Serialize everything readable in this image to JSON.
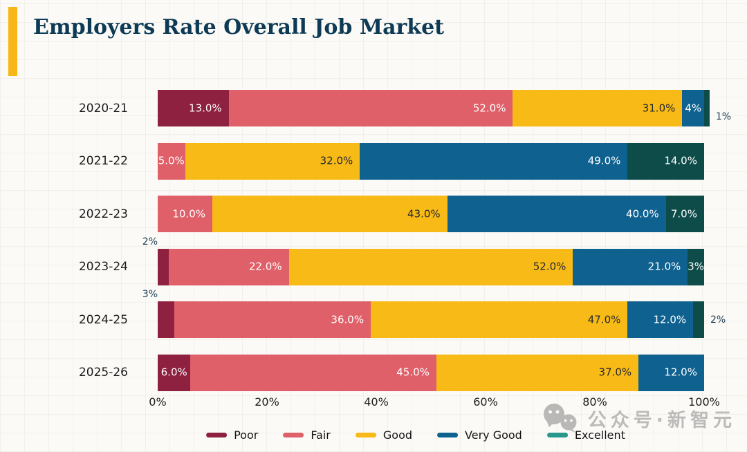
{
  "title": "Employers Rate Overall Job Market",
  "colors": {
    "accent": "#f7b718",
    "title": "#0d3a55",
    "poor": "#8e2040",
    "fair": "#e0606a",
    "good": "#f8ba16",
    "very_good": "#0f6190",
    "excellent": "#0e4c4a",
    "label_light": "#ffffff",
    "label_dark": "#24292e",
    "label_outside": "#1d3d52",
    "watermark": "#bcbbb9"
  },
  "chart_data": {
    "type": "bar",
    "orientation": "horizontal-stacked",
    "title": "Employers Rate Overall Job Market",
    "categories": [
      "2020-21",
      "2021-22",
      "2022-23",
      "2023-24",
      "2024-25",
      "2025-26"
    ],
    "series": [
      {
        "name": "Poor",
        "values": [
          13,
          0,
          0,
          2,
          3,
          6
        ]
      },
      {
        "name": "Fair",
        "values": [
          52,
          5,
          10,
          22,
          36,
          45
        ]
      },
      {
        "name": "Good",
        "values": [
          31,
          32,
          43,
          52,
          47,
          37
        ]
      },
      {
        "name": "Very Good",
        "values": [
          4,
          49,
          40,
          21,
          12,
          12
        ]
      },
      {
        "name": "Excellent",
        "values": [
          1,
          14,
          7,
          3,
          2,
          0
        ]
      }
    ],
    "x_ticks": [
      "0%",
      "20%",
      "40%",
      "60%",
      "80%",
      "100%"
    ],
    "xlim": [
      0,
      100
    ],
    "grid": false,
    "legend_position": "bottom",
    "rows": [
      {
        "category": "2020-21",
        "segments": [
          {
            "series": "Poor",
            "value": 13,
            "label": "13.0%",
            "placement": "in",
            "label_style": "light"
          },
          {
            "series": "Fair",
            "value": 52,
            "label": "52.0%",
            "placement": "in",
            "label_style": "light"
          },
          {
            "series": "Good",
            "value": 31,
            "label": "31.0%",
            "placement": "in",
            "label_style": "dark"
          },
          {
            "series": "Very Good",
            "value": 4,
            "label": "4%",
            "placement": "center",
            "label_style": "light"
          },
          {
            "series": "Excellent",
            "value": 1,
            "label": "1%",
            "placement": "out-right-low",
            "label_style": "outside"
          }
        ]
      },
      {
        "category": "2021-22",
        "segments": [
          {
            "series": "Fair",
            "value": 5,
            "label": "5.0%",
            "placement": "center",
            "label_style": "light"
          },
          {
            "series": "Good",
            "value": 32,
            "label": "32.0%",
            "placement": "in",
            "label_style": "dark"
          },
          {
            "series": "Very Good",
            "value": 49,
            "label": "49.0%",
            "placement": "in",
            "label_style": "light"
          },
          {
            "series": "Excellent",
            "value": 14,
            "label": "14.0%",
            "placement": "in",
            "label_style": "light"
          }
        ]
      },
      {
        "category": "2022-23",
        "segments": [
          {
            "series": "Fair",
            "value": 10,
            "label": "10.0%",
            "placement": "in",
            "label_style": "light"
          },
          {
            "series": "Good",
            "value": 43,
            "label": "43.0%",
            "placement": "in",
            "label_style": "dark"
          },
          {
            "series": "Very Good",
            "value": 40,
            "label": "40.0%",
            "placement": "in",
            "label_style": "light"
          },
          {
            "series": "Excellent",
            "value": 7,
            "label": "7.0%",
            "placement": "in",
            "label_style": "light"
          }
        ]
      },
      {
        "category": "2023-24",
        "segments": [
          {
            "series": "Poor",
            "value": 2,
            "label": "2%",
            "placement": "above-left",
            "label_style": "outside"
          },
          {
            "series": "Fair",
            "value": 22,
            "label": "22.0%",
            "placement": "in",
            "label_style": "light"
          },
          {
            "series": "Good",
            "value": 52,
            "label": "52.0%",
            "placement": "in",
            "label_style": "dark"
          },
          {
            "series": "Very Good",
            "value": 21,
            "label": "21.0%",
            "placement": "in",
            "label_style": "light"
          },
          {
            "series": "Excellent",
            "value": 3,
            "label": "3%",
            "placement": "center",
            "label_style": "light"
          }
        ]
      },
      {
        "category": "2024-25",
        "segments": [
          {
            "series": "Poor",
            "value": 3,
            "label": "3%",
            "placement": "above-left",
            "label_style": "outside"
          },
          {
            "series": "Fair",
            "value": 36,
            "label": "36.0%",
            "placement": "in",
            "label_style": "light"
          },
          {
            "series": "Good",
            "value": 47,
            "label": "47.0%",
            "placement": "in",
            "label_style": "dark"
          },
          {
            "series": "Very Good",
            "value": 12,
            "label": "12.0%",
            "placement": "in",
            "label_style": "light"
          },
          {
            "series": "Excellent",
            "value": 2,
            "label": "2%",
            "placement": "out-right",
            "label_style": "outside"
          }
        ]
      },
      {
        "category": "2025-26",
        "segments": [
          {
            "series": "Poor",
            "value": 6,
            "label": "6.0%",
            "placement": "center",
            "label_style": "light"
          },
          {
            "series": "Fair",
            "value": 45,
            "label": "45.0%",
            "placement": "in",
            "label_style": "light"
          },
          {
            "series": "Good",
            "value": 37,
            "label": "37.0%",
            "placement": "in",
            "label_style": "dark"
          },
          {
            "series": "Very Good",
            "value": 12,
            "label": "12.0%",
            "placement": "in",
            "label_style": "light"
          }
        ]
      }
    ]
  },
  "series_color_keys": {
    "Poor": "poor",
    "Fair": "fair",
    "Good": "good",
    "Very Good": "very_good",
    "Excellent": "excellent"
  },
  "legend": {
    "items": [
      {
        "label": "Poor",
        "color": "#8e2040"
      },
      {
        "label": "Fair",
        "color": "#e0606a"
      },
      {
        "label": "Good",
        "color": "#f8ba16"
      },
      {
        "label": "Very Good",
        "color": "#0f6190"
      },
      {
        "label": "Excellent",
        "color": "#27988b"
      }
    ]
  },
  "watermark": {
    "text": "公众号·新智元",
    "icon": "wechat-icon"
  }
}
